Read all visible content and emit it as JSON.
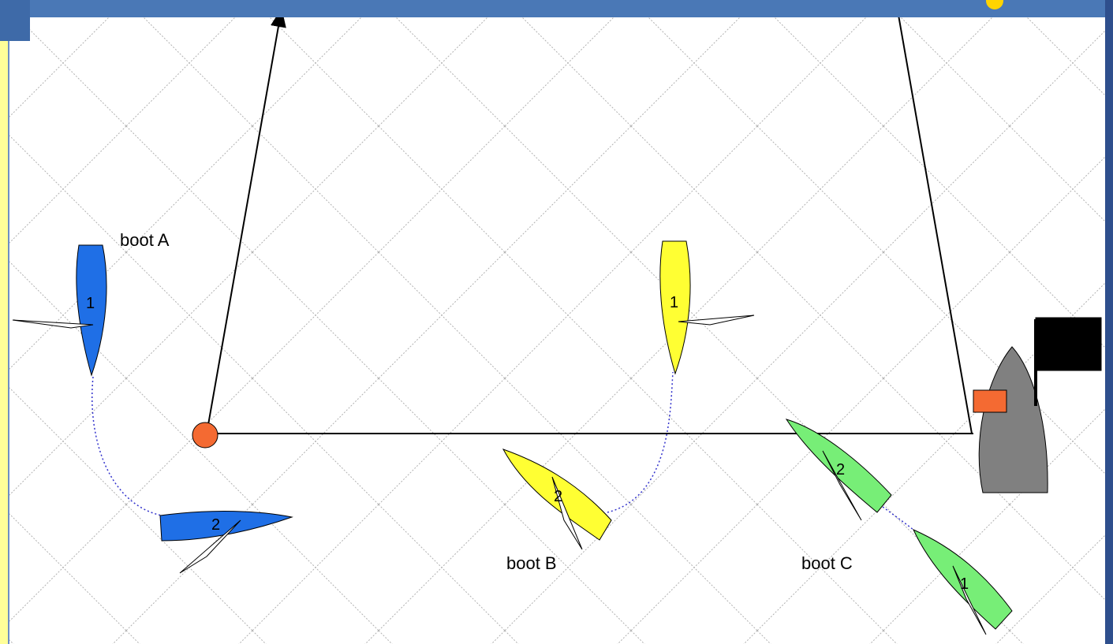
{
  "labels": {
    "boat_a": "boot A",
    "boat_b": "boot B",
    "boat_c": "boot C"
  },
  "positions": {
    "one": "1",
    "two": "2"
  },
  "colors": {
    "boat_a": "#1f6fe6",
    "boat_b": "#ffff33",
    "boat_c": "#77ee77",
    "committee_boat": "#808080",
    "pin_mark": "#f46a32",
    "committee_mark": "#f46a32",
    "flag": "#000000",
    "grid": "#b0b0b0",
    "track": "#3333cc",
    "frame_bar": "#4a78b6",
    "frame_strip": "#ffff99"
  }
}
